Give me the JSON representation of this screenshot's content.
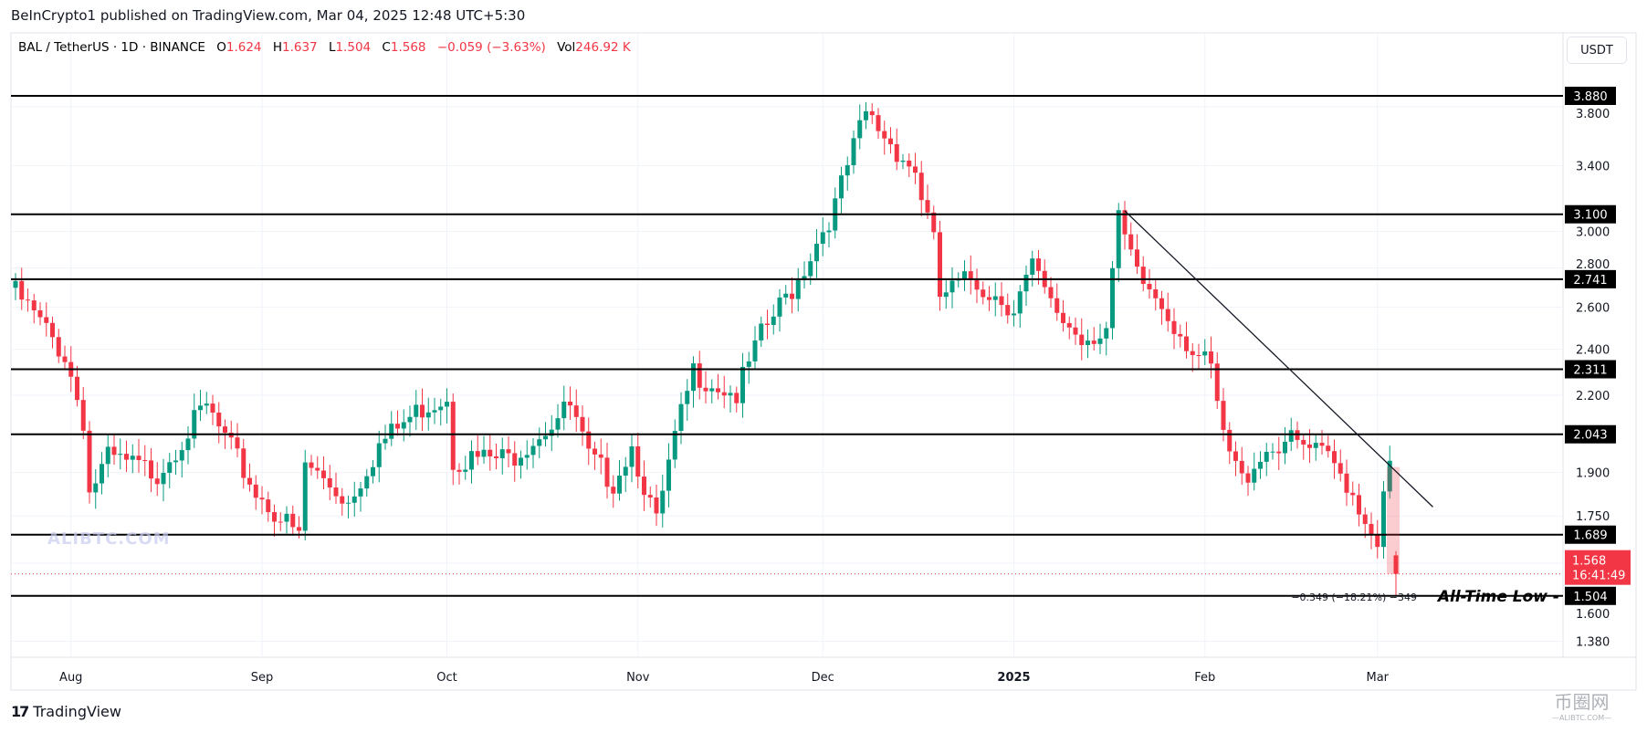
{
  "header": {
    "publisher_line": "BeInCrypto1 published on TradingView.com, Mar 04, 2025 12:48 UTC+5:30"
  },
  "legend": {
    "symbol": "BAL / TetherUS · 1D · BINANCE",
    "o_label": "O",
    "o": "1.624",
    "h_label": "H",
    "h": "1.637",
    "l_label": "L",
    "l": "1.504",
    "c_label": "C",
    "c": "1.568",
    "change": "−0.059 (−3.63%)",
    "vol_label": "Vol",
    "vol": "246.92 K"
  },
  "currency_button": "USDT",
  "footer": {
    "brand": "TradingView",
    "brand_mark": "17"
  },
  "watermarks": {
    "chart": "ALIBTC.COM",
    "corner": "币圈网",
    "corner_sub": "—ALIBTC.COM—"
  },
  "colors": {
    "up": "#089981",
    "down": "#f23645",
    "level": "#000000",
    "grid": "#f0f3fa"
  },
  "chart_data": {
    "type": "candlestick",
    "title": "BAL / TetherUS · 1D · BINANCE",
    "scale": "log",
    "ylim": [
      1.3,
      4.0
    ],
    "start_date": "2024-07-23",
    "close_path": [
      [
        0,
        2.67
      ],
      [
        3,
        2.56
      ],
      [
        8,
        2.37
      ],
      [
        11,
        2.1
      ],
      [
        12,
        1.83
      ],
      [
        15,
        1.95
      ],
      [
        23,
        1.9
      ],
      [
        31,
        2.15
      ],
      [
        34,
        2.02
      ],
      [
        39,
        1.83
      ],
      [
        46,
        1.68
      ],
      [
        47,
        1.93
      ],
      [
        54,
        1.8
      ],
      [
        59,
        2.0
      ],
      [
        66,
        2.15
      ],
      [
        70,
        2.2
      ],
      [
        71,
        1.95
      ],
      [
        80,
        1.95
      ],
      [
        90,
        2.15
      ],
      [
        93,
        1.95
      ],
      [
        97,
        1.87
      ],
      [
        100,
        2.0
      ],
      [
        104,
        1.72
      ],
      [
        107,
        2.02
      ],
      [
        110,
        2.3
      ],
      [
        117,
        2.2
      ],
      [
        121,
        2.46
      ],
      [
        127,
        2.74
      ],
      [
        133,
        3.15
      ],
      [
        138,
        3.75
      ],
      [
        141,
        3.6
      ],
      [
        146,
        3.36
      ],
      [
        149,
        2.93
      ],
      [
        150,
        2.65
      ],
      [
        155,
        2.74
      ],
      [
        162,
        2.6
      ],
      [
        165,
        2.8
      ],
      [
        168,
        2.6
      ],
      [
        173,
        2.45
      ],
      [
        177,
        2.5
      ],
      [
        179,
        3.05
      ],
      [
        182,
        2.75
      ],
      [
        185,
        2.65
      ],
      [
        191,
        2.4
      ],
      [
        194,
        2.3
      ],
      [
        196,
        2.02
      ],
      [
        199,
        1.87
      ],
      [
        202,
        1.97
      ],
      [
        206,
        2.02
      ],
      [
        213,
        1.95
      ],
      [
        216,
        1.87
      ],
      [
        219,
        1.74
      ],
      [
        221,
        1.68
      ],
      [
        223,
        1.92
      ]
    ],
    "last_candle": {
      "day": 224,
      "open": 1.624,
      "high": 1.637,
      "low": 1.504,
      "close": 1.568
    },
    "x_ticks": [
      {
        "label": "Aug",
        "day": 9
      },
      {
        "label": "Sep",
        "day": 40
      },
      {
        "label": "Oct",
        "day": 70
      },
      {
        "label": "Nov",
        "day": 101
      },
      {
        "label": "Dec",
        "day": 131
      },
      {
        "label": "2025",
        "day": 162,
        "bold": true
      },
      {
        "label": "Feb",
        "day": 193
      },
      {
        "label": "Mar",
        "day": 221
      }
    ],
    "y_ticks": [
      "3.800",
      "3.400",
      "3.000",
      "2.800",
      "2.600",
      "2.400",
      "2.200",
      "1.900",
      "1.750",
      "1.600",
      "1.380"
    ],
    "levels": [
      "3.880",
      "3.100",
      "2.741",
      "2.311",
      "2.043",
      "1.689",
      "1.504"
    ],
    "trendline": {
      "from": {
        "day": 180,
        "price": 3.12
      },
      "to": {
        "day": 230,
        "price": 1.78
      }
    },
    "current_price": {
      "value": "1.568",
      "countdown": "16:41:49"
    },
    "measurement": {
      "from": 1.92,
      "to": 1.568,
      "text": "−0.349 (−18.21%) −349"
    },
    "annotation": "All-Time Low -"
  }
}
